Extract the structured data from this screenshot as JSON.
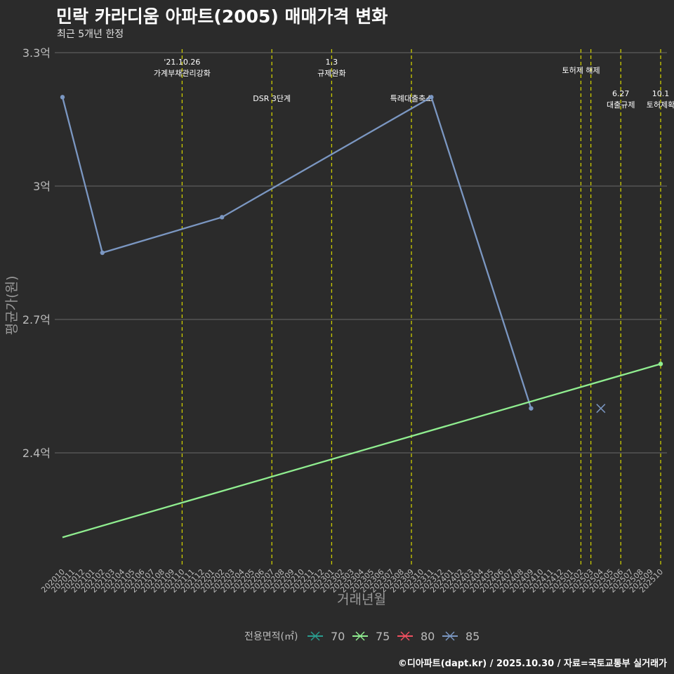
{
  "header": {
    "title": "민락 카라디움 아파트(2005) 매매가격 변화",
    "subtitle": "최근 5개년 한정"
  },
  "footer": {
    "caption": "©디아파트(dapt.kr) / 2025.10.30 / 자료=국토교통부 실거래가"
  },
  "colors": {
    "background": "#2b2b2b",
    "grid": "#6a6a6a",
    "policy_line": "#cccc00",
    "series_70": "#2a9d8f",
    "series_75": "#90ee90",
    "series_80": "#f05060",
    "series_85": "#7b97c2",
    "axis_text": "#bbbbbb"
  },
  "chart_data": {
    "type": "line",
    "title": "민락 카라디움 아파트(2005) 매매가격 변화",
    "subtitle": "최근 5개년 한정",
    "xlabel": "거래년월",
    "ylabel": "평균가(원)",
    "categories": [
      "202010",
      "202011",
      "202012",
      "202101",
      "202102",
      "202103",
      "202104",
      "202105",
      "202106",
      "202107",
      "202108",
      "202109",
      "202110",
      "202111",
      "202112",
      "202201",
      "202202",
      "202203",
      "202204",
      "202205",
      "202206",
      "202207",
      "202208",
      "202209",
      "202210",
      "202211",
      "202212",
      "202301",
      "202302",
      "202303",
      "202304",
      "202305",
      "202306",
      "202307",
      "202308",
      "202309",
      "202310",
      "202311",
      "202312",
      "202401",
      "202402",
      "202403",
      "202404",
      "202405",
      "202406",
      "202407",
      "202408",
      "202409",
      "202410",
      "202411",
      "202412",
      "202501",
      "202502",
      "202503",
      "202504",
      "202505",
      "202506",
      "202507",
      "202508",
      "202509",
      "202510"
    ],
    "ylim": [
      2.2,
      3.3
    ],
    "yticks": [
      {
        "value": 2.4,
        "label": "2.4억"
      },
      {
        "value": 2.7,
        "label": "2.7억"
      },
      {
        "value": 3.0,
        "label": "3억"
      },
      {
        "value": 3.3,
        "label": "3.3억"
      }
    ],
    "series": [
      {
        "name": "85",
        "kind": "line",
        "color": "#7b97c2",
        "points": [
          {
            "x": "202010",
            "y": 3.2
          },
          {
            "x": "202102",
            "y": 2.85
          },
          {
            "x": "202202",
            "y": 2.93
          },
          {
            "x": "202311",
            "y": 3.2
          },
          {
            "x": "202409",
            "y": 2.5
          }
        ]
      },
      {
        "name": "75",
        "kind": "trend",
        "color": "#90ee90",
        "points": [
          {
            "x": "202010",
            "y": 2.21
          },
          {
            "x": "202510",
            "y": 2.6
          }
        ],
        "marker": {
          "x": "202510",
          "y": 2.6
        }
      },
      {
        "name": "85",
        "kind": "single",
        "color": "#7b97c2",
        "points": [
          {
            "x": "202504",
            "y": 2.5
          }
        ]
      }
    ],
    "annotations": [
      {
        "x": "202110",
        "lines": [
          "'21.10.26",
          "가계부채관리강화"
        ],
        "row": 1
      },
      {
        "x": "202207",
        "lines": [
          "DSR 3단계"
        ],
        "row": 3
      },
      {
        "x": "202301",
        "lines": [
          "1.3",
          "규제완화"
        ],
        "row": 1
      },
      {
        "x": "202309",
        "lines": [
          "특례대출축소"
        ],
        "row": 3
      },
      {
        "x": "202502",
        "lines": [],
        "row": 0
      },
      {
        "x": "202503",
        "lines": [
          "토허제 해제"
        ],
        "row": 2,
        "offset": -14
      },
      {
        "x": "202506",
        "lines": [
          "6.27",
          "대출규제"
        ],
        "row": 4
      },
      {
        "x": "202510",
        "lines": [
          "10.1",
          "토허제확"
        ],
        "row": 4
      }
    ],
    "legend": {
      "title": "전용면적(㎡)",
      "position": "bottom",
      "entries": [
        {
          "label": "70",
          "color": "#2a9d8f"
        },
        {
          "label": "75",
          "color": "#90ee90"
        },
        {
          "label": "80",
          "color": "#f05060"
        },
        {
          "label": "85",
          "color": "#7b97c2"
        }
      ]
    }
  }
}
